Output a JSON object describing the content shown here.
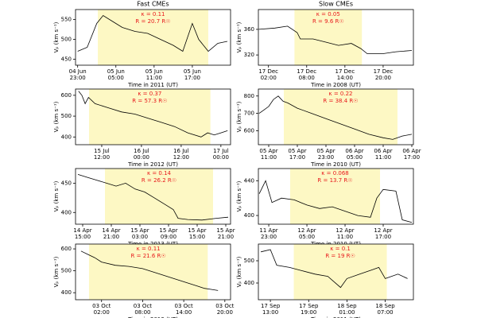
{
  "chart_data": [
    {
      "type": "line",
      "title": "Fast CMEs",
      "annotations": [
        "κ = 0.11",
        "R = 20.7 R☉"
      ],
      "xlabel": "Time in 2011 (UT)",
      "ylabel": "Vₚ (km s⁻¹)",
      "color": "#000000",
      "shade": [
        "2011-06-05T02:10",
        "2011-06-05T19:30"
      ],
      "shade_color": "#fdf8c4",
      "x": [
        "2011-06-04T23:00",
        "2011-06-05T00:30",
        "2011-06-05T02:00",
        "2011-06-05T03:00",
        "2011-06-05T04:30",
        "2011-06-05T06:00",
        "2011-06-05T08:00",
        "2011-06-05T10:00",
        "2011-06-05T12:00",
        "2011-06-05T14:00",
        "2011-06-05T15:30",
        "2011-06-05T17:00",
        "2011-06-05T18:00",
        "2011-06-05T19:30",
        "2011-06-05T21:00",
        "2011-06-05T22:30"
      ],
      "values": [
        470,
        480,
        540,
        560,
        545,
        530,
        520,
        515,
        500,
        485,
        470,
        540,
        500,
        470,
        490,
        495
      ],
      "xlim": [
        "2011-06-04T22:40",
        "2011-06-05T23:00"
      ],
      "xticks": [
        {
          "value": "2011-06-04T23:00",
          "label": [
            "04 Jun",
            "23:00"
          ]
        },
        {
          "value": "2011-06-05T05:00",
          "label": [
            "05 Jun",
            "05:00"
          ]
        },
        {
          "value": "2011-06-05T11:00",
          "label": [
            "05 Jun",
            "11:00"
          ]
        },
        {
          "value": "2011-06-05T17:00",
          "label": [
            "05 Jun",
            "17:00"
          ]
        }
      ],
      "ylim": [
        435,
        575
      ],
      "yticks": [
        450,
        500,
        550
      ]
    },
    {
      "type": "line",
      "title": "Slow CMEs",
      "annotations": [
        "κ = 0.05",
        "R = 9.6 R☉"
      ],
      "xlabel": "Time in 2008 (UT)",
      "ylabel": "Vₚ (km s⁻¹)",
      "color": "#000000",
      "shade": [
        "2008-12-17T06:05",
        "2008-12-17T16:40"
      ],
      "shade_color": "#fdf8c4",
      "x": [
        "2008-12-17T00:30",
        "2008-12-17T03:00",
        "2008-12-17T05:00",
        "2008-12-17T06:30",
        "2008-12-17T07:00",
        "2008-12-17T09:00",
        "2008-12-17T11:00",
        "2008-12-17T13:00",
        "2008-12-17T15:00",
        "2008-12-17T16:30",
        "2008-12-17T17:30",
        "2008-12-17T20:00",
        "2008-12-17T22:00",
        "2008-12-18T00:30"
      ],
      "values": [
        360,
        362,
        365,
        355,
        345,
        345,
        340,
        335,
        338,
        330,
        322,
        322,
        325,
        327
      ],
      "xlim": [
        "2008-12-17T00:25",
        "2008-12-18T00:45"
      ],
      "xticks": [
        {
          "value": "2008-12-17T02:00",
          "label": [
            "17 Dec",
            "02:00"
          ]
        },
        {
          "value": "2008-12-17T08:00",
          "label": [
            "17 Dec",
            "08:00"
          ]
        },
        {
          "value": "2008-12-17T14:00",
          "label": [
            "17 Dec",
            "14:00"
          ]
        },
        {
          "value": "2008-12-17T20:00",
          "label": [
            "17 Dec",
            "20:00"
          ]
        }
      ],
      "ylim": [
        304,
        391
      ],
      "yticks": [
        320,
        360
      ]
    },
    {
      "type": "line",
      "annotations": [
        "κ = 0.37",
        "R = 57.3 R☉"
      ],
      "xlabel": "Time in 2012 (UT)",
      "ylabel": "Vₚ (km s⁻¹)",
      "color": "#000000",
      "shade": [
        "2012-07-15T08:10",
        "2012-07-16T20:50"
      ],
      "shade_color": "#fdf8c4",
      "x": [
        "2012-07-15T05:00",
        "2012-07-15T06:00",
        "2012-07-15T07:00",
        "2012-07-15T08:00",
        "2012-07-15T10:00",
        "2012-07-15T14:00",
        "2012-07-15T18:00",
        "2012-07-15T22:00",
        "2012-07-16T02:00",
        "2012-07-16T06:00",
        "2012-07-16T10:00",
        "2012-07-16T14:00",
        "2012-07-16T18:00",
        "2012-07-16T20:00",
        "2012-07-16T22:00",
        "2012-07-17T00:00",
        "2012-07-17T02:00"
      ],
      "values": [
        620,
        600,
        560,
        590,
        560,
        540,
        520,
        510,
        490,
        470,
        450,
        420,
        400,
        420,
        410,
        420,
        430
      ],
      "xlim": [
        "2012-07-15T04:05",
        "2012-07-17T02:55"
      ],
      "xticks": [
        {
          "value": "2012-07-15T12:00",
          "label": [
            "15 Jul",
            "12:00"
          ]
        },
        {
          "value": "2012-07-16T00:00",
          "label": [
            "16 Jul",
            "00:00"
          ]
        },
        {
          "value": "2012-07-16T12:00",
          "label": [
            "16 Jul",
            "12:00"
          ]
        },
        {
          "value": "2012-07-17T00:00",
          "label": [
            "17 Jul",
            "00:00"
          ]
        }
      ],
      "ylim": [
        363,
        630
      ],
      "yticks": [
        400,
        500,
        600
      ]
    },
    {
      "type": "line",
      "annotations": [
        "κ = 0.22",
        "R = 38.4 R☉"
      ],
      "xlabel": "Time in 2010 (UT)",
      "ylabel": "Vₚ (km s⁻¹)",
      "color": "#000000",
      "shade": [
        "2010-04-05T14:10",
        "2010-04-06T14:00"
      ],
      "shade_color": "#fdf8c4",
      "x": [
        "2010-04-05T09:00",
        "2010-04-05T10:00",
        "2010-04-05T11:00",
        "2010-04-05T12:00",
        "2010-04-05T13:00",
        "2010-04-05T14:00",
        "2010-04-05T15:00",
        "2010-04-05T17:00",
        "2010-04-05T20:00",
        "2010-04-05T23:00",
        "2010-04-06T02:00",
        "2010-04-06T05:00",
        "2010-04-06T08:00",
        "2010-04-06T11:00",
        "2010-04-06T13:00",
        "2010-04-06T14:00",
        "2010-04-06T15:00",
        "2010-04-06T17:00"
      ],
      "values": [
        700,
        720,
        740,
        780,
        800,
        770,
        760,
        730,
        700,
        670,
        640,
        610,
        580,
        560,
        550,
        560,
        570,
        580
      ],
      "xlim": [
        "2010-04-05T08:50",
        "2010-04-06T17:20"
      ],
      "xticks": [
        {
          "value": "2010-04-05T11:00",
          "label": [
            "05 Apr",
            "11:00"
          ]
        },
        {
          "value": "2010-04-05T17:00",
          "label": [
            "05 Apr",
            "17:00"
          ]
        },
        {
          "value": "2010-04-05T23:00",
          "label": [
            "05 Apr",
            "23:00"
          ]
        },
        {
          "value": "2010-04-06T05:00",
          "label": [
            "06 Apr",
            "05:00"
          ]
        },
        {
          "value": "2010-04-06T11:00",
          "label": [
            "06 Apr",
            "11:00"
          ]
        },
        {
          "value": "2010-04-06T17:00",
          "label": [
            "06 Apr",
            "17:00"
          ]
        }
      ],
      "ylim": [
        520,
        840
      ],
      "yticks": [
        600,
        700,
        800
      ]
    },
    {
      "type": "line",
      "annotations": [
        "κ = 0.14",
        "R = 26.2 R☉"
      ],
      "xlabel": "Time in 2013 (UT)",
      "ylabel": "Vₚ (km s⁻¹)",
      "color": "#000000",
      "shade": [
        "2013-04-14T19:40",
        "2013-04-15T18:20"
      ],
      "shade_color": "#fdf8c4",
      "x": [
        "2013-04-14T14:00",
        "2013-04-14T16:00",
        "2013-04-14T18:00",
        "2013-04-14T20:00",
        "2013-04-14T22:00",
        "2013-04-15T00:00",
        "2013-04-15T02:00",
        "2013-04-15T04:00",
        "2013-04-15T06:00",
        "2013-04-15T08:00",
        "2013-04-15T10:00",
        "2013-04-15T11:00",
        "2013-04-15T13:00",
        "2013-04-15T16:00",
        "2013-04-15T19:00",
        "2013-04-15T21:30"
      ],
      "values": [
        465,
        460,
        455,
        450,
        445,
        450,
        440,
        435,
        425,
        415,
        405,
        390,
        388,
        387,
        390,
        392
      ],
      "xlim": [
        "2013-04-14T13:30",
        "2013-04-15T22:00"
      ],
      "xticks": [
        {
          "value": "2013-04-14T15:00",
          "label": [
            "14 Apr",
            "15:00"
          ]
        },
        {
          "value": "2013-04-14T21:00",
          "label": [
            "14 Apr",
            "21:00"
          ]
        },
        {
          "value": "2013-04-15T03:00",
          "label": [
            "15 Apr",
            "03:00"
          ]
        },
        {
          "value": "2013-04-15T09:00",
          "label": [
            "15 Apr",
            "09:00"
          ]
        },
        {
          "value": "2013-04-15T15:00",
          "label": [
            "15 Apr",
            "15:00"
          ]
        },
        {
          "value": "2013-04-15T21:00",
          "label": [
            "15 Apr",
            "21:00"
          ]
        }
      ],
      "ylim": [
        380,
        475
      ],
      "yticks": [
        400,
        450
      ]
    },
    {
      "type": "line",
      "annotations": [
        "κ = 0.068",
        "R = 13.7 R☉"
      ],
      "xlabel": "Time in 2010 (UT)",
      "ylabel": "Vₚ (km s⁻¹)",
      "color": "#000000",
      "shade": [
        "2010-04-12T02:22",
        "2010-04-12T16:30"
      ],
      "shade_color": "#fdf8c4",
      "x": [
        "2010-04-11T21:30",
        "2010-04-11T22:30",
        "2010-04-11T23:30",
        "2010-04-12T01:00",
        "2010-04-12T03:00",
        "2010-04-12T05:00",
        "2010-04-12T07:00",
        "2010-04-12T09:00",
        "2010-04-12T11:00",
        "2010-04-12T13:00",
        "2010-04-12T15:00",
        "2010-04-12T16:00",
        "2010-04-12T17:00",
        "2010-04-12T19:00",
        "2010-04-12T20:00",
        "2010-04-12T21:30"
      ],
      "values": [
        425,
        440,
        415,
        420,
        418,
        412,
        408,
        410,
        405,
        400,
        398,
        420,
        430,
        428,
        395,
        392
      ],
      "xlim": [
        "2010-04-11T21:22",
        "2010-04-12T21:45"
      ],
      "xticks": [
        {
          "value": "2010-04-11T23:00",
          "label": [
            "11 Apr",
            "23:00"
          ]
        },
        {
          "value": "2010-04-12T05:00",
          "label": [
            "12 Apr",
            "05:00"
          ]
        },
        {
          "value": "2010-04-12T11:00",
          "label": [
            "12 Apr",
            "11:00"
          ]
        },
        {
          "value": "2010-04-12T17:00",
          "label": [
            "12 Apr",
            "17:00"
          ]
        }
      ],
      "ylim": [
        390,
        454
      ],
      "yticks": [
        400,
        440
      ]
    },
    {
      "type": "line",
      "annotations": [
        "κ = 0.11",
        "R = 21.6 R☉"
      ],
      "xlabel": "Time in 2013 (UT)",
      "ylabel": "Vₚ (km s⁻¹)",
      "color": "#000000",
      "shade": [
        "2013-10-03T00:10",
        "2013-10-03T17:30"
      ],
      "shade_color": "#fdf8c4",
      "x": [
        "2013-10-02T23:00",
        "2013-10-03T00:00",
        "2013-10-03T01:00",
        "2013-10-03T02:00",
        "2013-10-03T04:00",
        "2013-10-03T06:00",
        "2013-10-03T08:00",
        "2013-10-03T10:00",
        "2013-10-03T12:00",
        "2013-10-03T14:00",
        "2013-10-03T16:00",
        "2013-10-03T17:00",
        "2013-10-03T18:00",
        "2013-10-03T19:00"
      ],
      "values": [
        590,
        575,
        560,
        540,
        525,
        520,
        510,
        490,
        470,
        450,
        430,
        420,
        415,
        410
      ],
      "xlim": [
        "2013-10-02T22:12",
        "2013-10-03T20:50"
      ],
      "xticks": [
        {
          "value": "2013-10-03T02:00",
          "label": [
            "03 Oct",
            "02:00"
          ]
        },
        {
          "value": "2013-10-03T08:00",
          "label": [
            "03 Oct",
            "08:00"
          ]
        },
        {
          "value": "2013-10-03T14:00",
          "label": [
            "03 Oct",
            "14:00"
          ]
        },
        {
          "value": "2013-10-03T20:00",
          "label": [
            "03 Oct",
            "20:00"
          ]
        }
      ],
      "ylim": [
        368,
        622
      ],
      "yticks": [
        400,
        500,
        600
      ]
    },
    {
      "type": "line",
      "annotations": [
        "κ = 0.1",
        "R = 19 R☉"
      ],
      "xlabel": "Time in 2011 (UT)",
      "ylabel": "Vₚ (km s⁻¹)",
      "color": "#000000",
      "shade": [
        "2011-09-17T16:40",
        "2011-09-18T07:15"
      ],
      "shade_color": "#fdf8c4",
      "x": [
        "2011-09-17T11:30",
        "2011-09-17T13:00",
        "2011-09-17T14:00",
        "2011-09-17T16:00",
        "2011-09-17T18:00",
        "2011-09-17T20:00",
        "2011-09-17T22:00",
        "2011-09-18T00:00",
        "2011-09-18T01:00",
        "2011-09-18T03:00",
        "2011-09-18T05:00",
        "2011-09-18T06:00",
        "2011-09-18T07:00",
        "2011-09-18T09:00",
        "2011-09-18T10:30"
      ],
      "values": [
        540,
        550,
        480,
        470,
        455,
        440,
        430,
        380,
        420,
        440,
        460,
        470,
        420,
        440,
        420
      ],
      "xlim": [
        "2011-09-17T11:07",
        "2011-09-18T11:25"
      ],
      "xticks": [
        {
          "value": "2011-09-17T13:00",
          "label": [
            "17 Sep",
            "13:00"
          ]
        },
        {
          "value": "2011-09-17T19:00",
          "label": [
            "17 Sep",
            "19:00"
          ]
        },
        {
          "value": "2011-09-18T01:00",
          "label": [
            "18 Sep",
            "01:00"
          ]
        },
        {
          "value": "2011-09-18T07:00",
          "label": [
            "18 Sep",
            "07:00"
          ]
        }
      ],
      "ylim": [
        325,
        575
      ],
      "yticks": [
        400,
        500
      ]
    }
  ]
}
